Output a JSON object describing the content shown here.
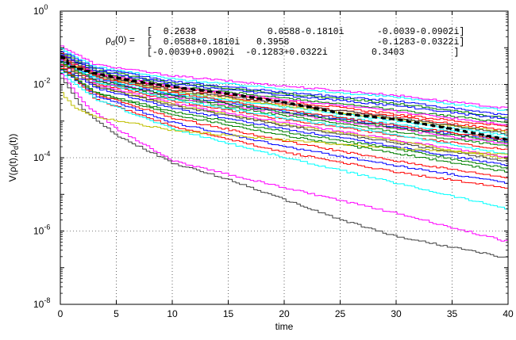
{
  "chart_data": {
    "type": "line",
    "xlabel": "time",
    "ylabel": "V(ρ(t),ρ_d(t))",
    "ylabel_parts": {
      "main": "V(ρ(t),ρ",
      "sub": "d",
      "tail": "(t))"
    },
    "xlim": [
      0,
      40
    ],
    "ylim_log10": [
      -8,
      0
    ],
    "y_scale": "log",
    "grid": "dotted",
    "x_ticks": [
      "0",
      "5",
      "10",
      "15",
      "20",
      "25",
      "30",
      "35",
      "40"
    ],
    "y_ticks": [
      {
        "base": "10",
        "exp": "0"
      },
      {
        "base": "10",
        "exp": "-2"
      },
      {
        "base": "10",
        "exp": "-4"
      },
      {
        "base": "10",
        "exp": "-6"
      },
      {
        "base": "10",
        "exp": "-8"
      }
    ],
    "annotation": {
      "label_main": "ρ",
      "label_sub": "d",
      "label_tail": "(0) =",
      "rows": [
        "[  0.2638             0.0588-0.1810i      -0.0039-0.0902i]",
        "[  0.0588+0.1810i   0.3958                -0.1283-0.0322i]",
        "[-0.0039+0.0902i  -0.1283+0.0322i        0.3403         ]"
      ]
    },
    "series": [
      {
        "color": "#000000",
        "style": "dashed",
        "points": [
          [
            0,
            0.055
          ],
          [
            1,
            0.03
          ],
          [
            3,
            0.02
          ],
          [
            6,
            0.013
          ],
          [
            10,
            0.0085
          ],
          [
            15,
            0.0055
          ],
          [
            20,
            0.0032
          ],
          [
            25,
            0.0016
          ],
          [
            30,
            0.0011
          ],
          [
            35,
            0.0006
          ],
          [
            40,
            0.0003
          ]
        ]
      },
      {
        "color": "#ff00ff",
        "points": [
          [
            0,
            0.11
          ],
          [
            3,
            0.035
          ],
          [
            10,
            0.017
          ],
          [
            20,
            0.009
          ],
          [
            30,
            0.005
          ],
          [
            40,
            0.0022
          ]
        ]
      },
      {
        "color": "#00ffff",
        "points": [
          [
            0,
            0.09
          ],
          [
            3,
            0.03
          ],
          [
            10,
            0.014
          ],
          [
            20,
            0.0075
          ],
          [
            30,
            0.0045
          ],
          [
            40,
            0.0019
          ]
        ]
      },
      {
        "color": "#0000ff",
        "points": [
          [
            0,
            0.08
          ],
          [
            3,
            0.028
          ],
          [
            10,
            0.012
          ],
          [
            20,
            0.006
          ],
          [
            30,
            0.0035
          ],
          [
            40,
            0.0014
          ]
        ]
      },
      {
        "color": "#008000",
        "points": [
          [
            0,
            0.07
          ],
          [
            3,
            0.025
          ],
          [
            10,
            0.011
          ],
          [
            20,
            0.0055
          ],
          [
            30,
            0.003
          ],
          [
            40,
            0.0012
          ]
        ]
      },
      {
        "color": "#ff0000",
        "points": [
          [
            0,
            0.07
          ],
          [
            3,
            0.02
          ],
          [
            10,
            0.008
          ],
          [
            20,
            0.0035
          ],
          [
            30,
            0.0015
          ],
          [
            40,
            0.0007
          ]
        ]
      },
      {
        "color": "#ff0000",
        "points": [
          [
            0,
            0.06
          ],
          [
            3,
            0.018
          ],
          [
            10,
            0.007
          ],
          [
            20,
            0.0028
          ],
          [
            30,
            0.0013
          ],
          [
            40,
            0.00055
          ]
        ]
      },
      {
        "color": "#008000",
        "points": [
          [
            0,
            0.065
          ],
          [
            3,
            0.022
          ],
          [
            10,
            0.009
          ],
          [
            20,
            0.0042
          ],
          [
            30,
            0.002
          ],
          [
            40,
            0.0009
          ]
        ]
      },
      {
        "color": "#00ffff",
        "points": [
          [
            0,
            0.05
          ],
          [
            3,
            0.016
          ],
          [
            10,
            0.006
          ],
          [
            20,
            0.0024
          ],
          [
            30,
            0.001
          ],
          [
            40,
            0.0004
          ]
        ]
      },
      {
        "color": "#ff00ff",
        "points": [
          [
            0,
            0.06
          ],
          [
            3,
            0.02
          ],
          [
            10,
            0.0085
          ],
          [
            20,
            0.0038
          ],
          [
            30,
            0.0018
          ],
          [
            40,
            0.00078
          ]
        ]
      },
      {
        "color": "#bfbf00",
        "points": [
          [
            0,
            0.055
          ],
          [
            3,
            0.017
          ],
          [
            10,
            0.0065
          ],
          [
            20,
            0.0026
          ],
          [
            30,
            0.0011
          ],
          [
            40,
            0.0005
          ]
        ]
      },
      {
        "color": "#404040",
        "points": [
          [
            0,
            0.06
          ],
          [
            3,
            0.018
          ],
          [
            10,
            0.007
          ],
          [
            20,
            0.003
          ],
          [
            30,
            0.0012
          ],
          [
            40,
            0.00045
          ]
        ]
      },
      {
        "color": "#0000ff",
        "points": [
          [
            0,
            0.045
          ],
          [
            3,
            0.014
          ],
          [
            10,
            0.005
          ],
          [
            20,
            0.0018
          ],
          [
            30,
            0.0007
          ],
          [
            40,
            0.00028
          ]
        ]
      },
      {
        "color": "#008000",
        "points": [
          [
            0,
            0.05
          ],
          [
            3,
            0.012
          ],
          [
            10,
            0.0042
          ],
          [
            20,
            0.0014
          ],
          [
            30,
            0.0005
          ],
          [
            40,
            0.0002
          ]
        ]
      },
      {
        "color": "#ff0000",
        "points": [
          [
            0,
            0.04
          ],
          [
            3,
            0.011
          ],
          [
            10,
            0.0035
          ],
          [
            20,
            0.0011
          ],
          [
            30,
            0.0004
          ],
          [
            40,
            0.00016
          ]
        ]
      },
      {
        "color": "#00ffff",
        "points": [
          [
            0,
            0.045
          ],
          [
            3,
            0.012
          ],
          [
            10,
            0.0038
          ],
          [
            20,
            0.0012
          ],
          [
            30,
            0.00042
          ],
          [
            40,
            0.00012
          ]
        ]
      },
      {
        "color": "#ff00ff",
        "points": [
          [
            0,
            0.035
          ],
          [
            3,
            0.01
          ],
          [
            10,
            0.003
          ],
          [
            20,
            0.0009
          ],
          [
            30,
            0.0003
          ],
          [
            40,
            0.0001
          ]
        ]
      },
      {
        "color": "#bfbf00",
        "points": [
          [
            0,
            0.04
          ],
          [
            3,
            0.009
          ],
          [
            10,
            0.0028
          ],
          [
            20,
            0.0008
          ],
          [
            30,
            0.00028
          ],
          [
            40,
            9e-05
          ]
        ]
      },
      {
        "color": "#404040",
        "points": [
          [
            0,
            0.035
          ],
          [
            3,
            0.009
          ],
          [
            10,
            0.0026
          ],
          [
            20,
            0.00075
          ],
          [
            30,
            0.00025
          ],
          [
            40,
            8e-05
          ]
        ]
      },
      {
        "color": "#0000ff",
        "points": [
          [
            0,
            0.03
          ],
          [
            3,
            0.008
          ],
          [
            10,
            0.0022
          ],
          [
            20,
            0.0006
          ],
          [
            30,
            0.0002
          ],
          [
            40,
            6e-05
          ]
        ]
      },
      {
        "color": "#008000",
        "points": [
          [
            0,
            0.03
          ],
          [
            3,
            0.006
          ],
          [
            10,
            0.0015
          ],
          [
            20,
            0.0004
          ],
          [
            30,
            0.00013
          ],
          [
            40,
            4e-05
          ]
        ]
      },
      {
        "color": "#ff0000",
        "points": [
          [
            0,
            0.028
          ],
          [
            3,
            0.0055
          ],
          [
            10,
            0.0012
          ],
          [
            20,
            0.00028
          ],
          [
            30,
            8e-05
          ],
          [
            40,
            2.8e-05
          ]
        ]
      },
      {
        "color": "#0000ff",
        "points": [
          [
            0,
            0.025
          ],
          [
            3,
            0.005
          ],
          [
            10,
            0.0009
          ],
          [
            20,
            0.0002
          ],
          [
            30,
            6e-05
          ],
          [
            40,
            2e-05
          ]
        ]
      },
      {
        "color": "#ff0000",
        "points": [
          [
            0,
            0.035
          ],
          [
            3,
            0.004
          ],
          [
            10,
            0.0007
          ],
          [
            20,
            0.00014
          ],
          [
            30,
            4e-05
          ],
          [
            40,
            1.5e-05
          ]
        ]
      },
      {
        "color": "#00ffff",
        "points": [
          [
            0,
            0.02
          ],
          [
            3,
            0.004
          ],
          [
            10,
            0.0006
          ],
          [
            20,
            0.0001
          ],
          [
            30,
            2e-05
          ],
          [
            40,
            4e-06
          ]
        ]
      },
      {
        "color": "#ff00ff",
        "points": [
          [
            0,
            0.02
          ],
          [
            2,
            0.003
          ],
          [
            5,
            0.0006
          ],
          [
            10,
            8e-05
          ],
          [
            20,
            1.5e-05
          ],
          [
            30,
            3e-06
          ],
          [
            40,
            5e-07
          ]
        ]
      },
      {
        "color": "#404040",
        "points": [
          [
            0,
            0.015
          ],
          [
            2,
            0.002
          ],
          [
            5,
            0.0004
          ],
          [
            10,
            7e-05
          ],
          [
            15,
            2.5e-05
          ],
          [
            20,
            7e-06
          ],
          [
            25,
            2e-06
          ],
          [
            30,
            7e-07
          ],
          [
            40,
            1.8e-07
          ]
        ]
      },
      {
        "color": "#bfbf00",
        "points": [
          [
            0,
            0.006
          ],
          [
            1,
            0.0025
          ],
          [
            3,
            0.0013
          ],
          [
            6,
            0.0009
          ],
          [
            10,
            0.00055
          ],
          [
            20,
            0.0003
          ],
          [
            30,
            0.00018
          ],
          [
            40,
            0.00012
          ]
        ]
      },
      {
        "color": "#008000",
        "points": [
          [
            0,
            0.025
          ],
          [
            3,
            0.006
          ],
          [
            10,
            0.0018
          ],
          [
            20,
            0.0005
          ],
          [
            30,
            0.00017
          ],
          [
            40,
            5e-05
          ]
        ]
      },
      {
        "color": "#ff00ff",
        "points": [
          [
            0,
            0.045
          ],
          [
            3,
            0.013
          ],
          [
            10,
            0.0045
          ],
          [
            20,
            0.0016
          ],
          [
            30,
            0.0006
          ],
          [
            40,
            0.00023
          ]
        ]
      },
      {
        "color": "#00ffff",
        "points": [
          [
            0,
            0.04
          ],
          [
            3,
            0.015
          ],
          [
            10,
            0.0055
          ],
          [
            20,
            0.002
          ],
          [
            30,
            0.0008
          ],
          [
            40,
            0.00034
          ]
        ]
      },
      {
        "color": "#0000ff",
        "points": [
          [
            0,
            0.065
          ],
          [
            3,
            0.024
          ],
          [
            10,
            0.01
          ],
          [
            20,
            0.005
          ],
          [
            30,
            0.0026
          ],
          [
            40,
            0.0011
          ]
        ]
      },
      {
        "color": "#ff0000",
        "points": [
          [
            0,
            0.05
          ],
          [
            3,
            0.016
          ],
          [
            10,
            0.0058
          ],
          [
            20,
            0.002
          ],
          [
            30,
            0.00075
          ],
          [
            40,
            0.0003
          ]
        ]
      },
      {
        "color": "#008000",
        "points": [
          [
            0,
            0.04
          ],
          [
            3,
            0.013
          ],
          [
            10,
            0.0048
          ],
          [
            20,
            0.0017
          ],
          [
            30,
            0.00065
          ],
          [
            40,
            0.00026
          ]
        ]
      }
    ]
  }
}
